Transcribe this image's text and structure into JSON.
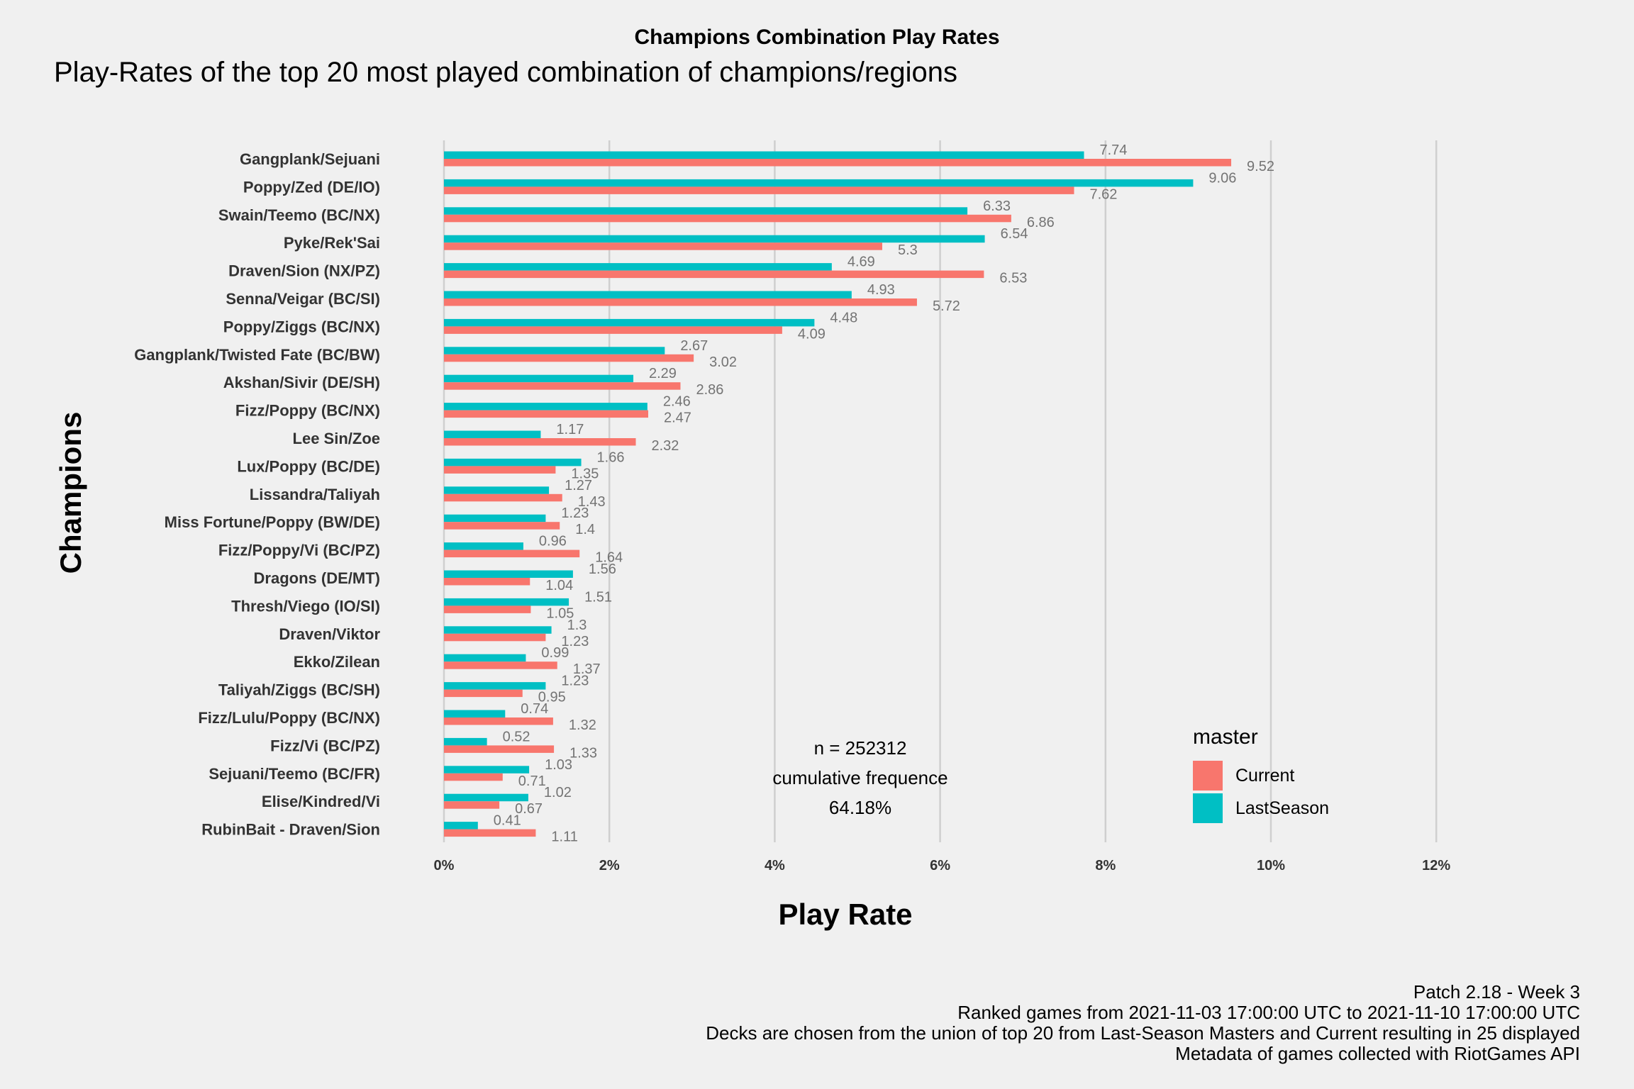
{
  "chart_data": {
    "type": "bar",
    "orientation": "horizontal",
    "title": "Champions Combination Play Rates",
    "subtitle": "Play-Rates of the top 20 most played combination of champions/regions",
    "xlabel": "Play Rate",
    "ylabel": "Champions",
    "xlim": [
      0,
      12
    ],
    "xticks": [
      "0%",
      "2%",
      "4%",
      "6%",
      "8%",
      "10%",
      "12%"
    ],
    "grid": true,
    "legend_position": "right",
    "legend_title": "master",
    "categories": [
      "Gangplank/Sejuani",
      "Poppy/Zed (DE/IO)",
      "Swain/Teemo (BC/NX)",
      "Pyke/Rek'Sai",
      "Draven/Sion (NX/PZ)",
      "Senna/Veigar (BC/SI)",
      "Poppy/Ziggs (BC/NX)",
      "Gangplank/Twisted Fate (BC/BW)",
      "Akshan/Sivir (DE/SH)",
      "Fizz/Poppy (BC/NX)",
      "Lee Sin/Zoe",
      "Lux/Poppy (BC/DE)",
      "Lissandra/Taliyah",
      "Miss Fortune/Poppy (BW/DE)",
      "Fizz/Poppy/Vi (BC/PZ)",
      "Dragons (DE/MT)",
      "Thresh/Viego (IO/SI)",
      "Draven/Viktor",
      "Ekko/Zilean",
      "Taliyah/Ziggs (BC/SH)",
      "Fizz/Lulu/Poppy (BC/NX)",
      "Fizz/Vi (BC/PZ)",
      "Sejuani/Teemo (BC/FR)",
      "Elise/Kindred/Vi",
      "RubinBait - Draven/Sion"
    ],
    "series": [
      {
        "name": "Current",
        "color": "#f8766d",
        "values": [
          9.52,
          7.62,
          6.86,
          5.3,
          6.53,
          5.72,
          4.09,
          3.02,
          2.86,
          2.47,
          2.32,
          1.35,
          1.43,
          1.4,
          1.64,
          1.04,
          1.05,
          1.23,
          1.37,
          0.95,
          1.32,
          1.33,
          0.71,
          0.67,
          1.11
        ],
        "labels": [
          "9.52",
          "7.62",
          "6.86",
          "5.3",
          "6.53",
          "5.72",
          "4.09",
          "3.02",
          "2.86",
          "2.47",
          "2.32",
          "1.35",
          "1.43",
          "1.4",
          "1.64",
          "1.04",
          "1.05",
          "1.23",
          "1.37",
          "0.95",
          "1.32",
          "1.33",
          "0.71",
          "0.67",
          "1.11"
        ]
      },
      {
        "name": "LastSeason",
        "color": "#00bfc4",
        "values": [
          7.74,
          9.06,
          6.33,
          6.54,
          4.69,
          4.93,
          4.48,
          2.67,
          2.29,
          2.46,
          1.17,
          1.66,
          1.27,
          1.23,
          0.96,
          1.56,
          1.51,
          1.3,
          0.99,
          1.23,
          0.74,
          0.52,
          1.03,
          1.02,
          0.41
        ],
        "labels": [
          "7.74",
          "9.06",
          "6.33",
          "6.54",
          "4.69",
          "4.93",
          "4.48",
          "2.67",
          "2.29",
          "2.46",
          "1.17",
          "1.66",
          "1.27",
          "1.23",
          "0.96",
          "1.56",
          "1.51",
          "1.3",
          "0.99",
          "1.23",
          "0.74",
          "0.52",
          "1.03",
          "1.02",
          "0.41"
        ]
      }
    ],
    "annotation": [
      "n = 252312",
      "cumulative frequence",
      "64.18%"
    ],
    "caption": [
      "Patch 2.18 - Week 3",
      "Ranked games from 2021-11-03 17:00:00 UTC to 2021-11-10 17:00:00 UTC",
      "Decks are chosen from the union of top 20 from Last-Season Masters and Current resulting in 25 displayed",
      "Metadata of games collected with RiotGames API"
    ]
  }
}
